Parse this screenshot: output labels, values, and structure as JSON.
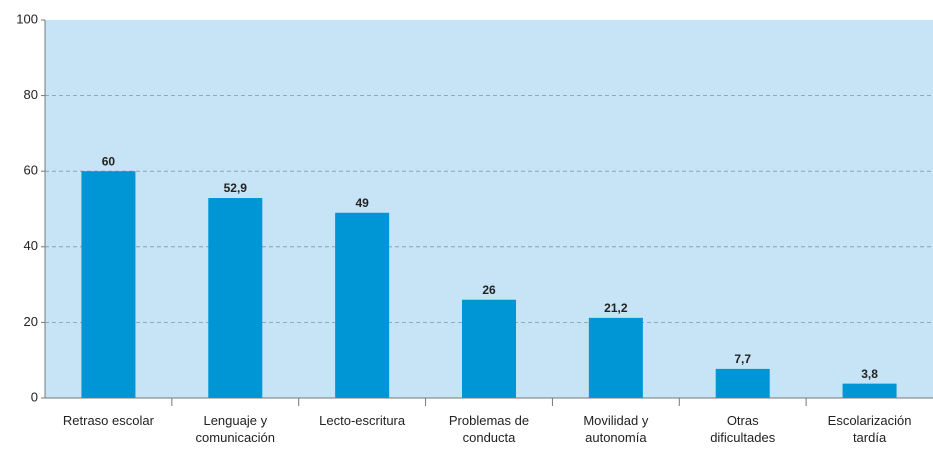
{
  "chart_data": {
    "type": "bar",
    "categories": [
      "Retraso escolar",
      "Lenguaje y\ncomunicación",
      "Lecto-escritura",
      "Problemas de\nconducta",
      "Movilidad y\nautonomía",
      "Otras\ndificultades",
      "Escolarización\ntardía"
    ],
    "values": [
      60,
      52.9,
      49,
      26,
      21.2,
      7.7,
      3.8
    ],
    "value_labels": [
      "60",
      "52,9",
      "49",
      "26",
      "21,2",
      "7,7",
      "3,8"
    ],
    "color": "#0095d5",
    "ylim": [
      0,
      100
    ],
    "yticks": [
      0,
      20,
      40,
      60,
      80,
      100
    ],
    "grid": true
  }
}
